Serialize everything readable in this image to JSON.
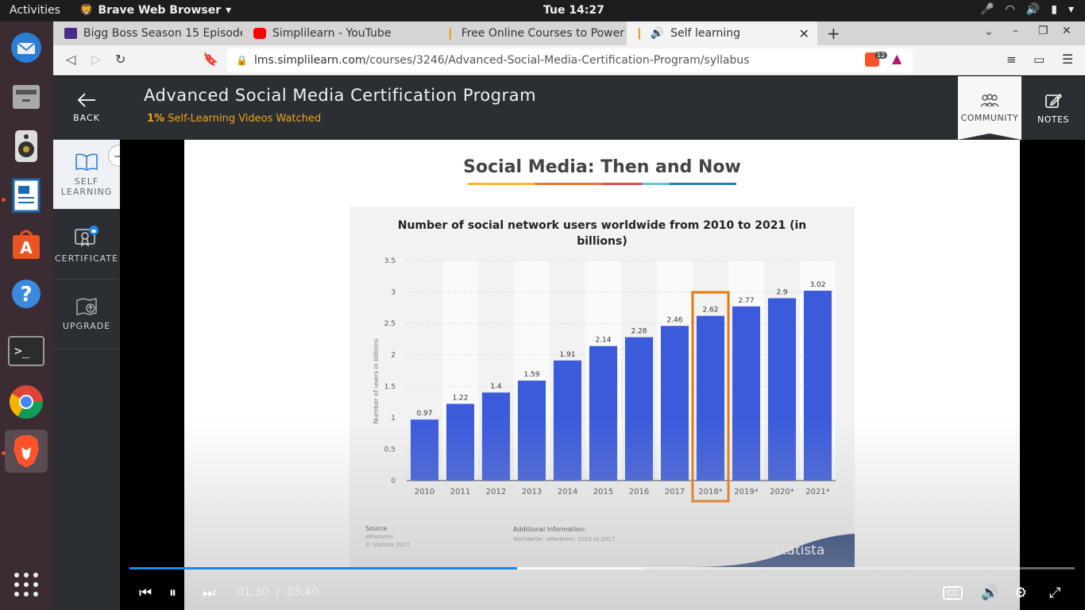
{
  "system": {
    "activities": "Activities",
    "app_name": "Brave Web Browser",
    "clock": "Tue 14:27"
  },
  "tabs": [
    {
      "label": "Bigg Boss Season 15 Episode",
      "favicon_color": "#4b2a8a"
    },
    {
      "label": "Simplilearn - YouTube",
      "favicon_color": "#ff0000"
    },
    {
      "label": "Free Online Courses to Power",
      "favicon_color": "#f0a21a"
    },
    {
      "label": "Self learning",
      "favicon_color": "#f0a21a"
    }
  ],
  "address": {
    "domain": "lms.simplilearn.com",
    "path": "/courses/3246/Advanced-Social-Media-Certification-Program/syllabus",
    "shield_count": "12"
  },
  "header": {
    "title": "Advanced Social Media Certification Program",
    "progress_pct": "1%",
    "progress_text": " Self-Learning Videos Watched",
    "community": "COMMUNITY",
    "notes": "NOTES"
  },
  "nav": {
    "back": "BACK",
    "self_learning_1": "SELF",
    "self_learning_2": "LEARNING",
    "certificate": "CERTIFICATE",
    "upgrade": "UPGRADE"
  },
  "slide": {
    "heading": "Social Media: Then and Now",
    "source_label": "Source",
    "source_1": "eMarketer",
    "source_2": "© Statista 2017",
    "info_label": "Additional Information:",
    "info_text": "Worldwide; eMarketer; 2010 to 2017",
    "brand": "statista"
  },
  "chart_data": {
    "type": "bar",
    "title": "Number of social network users worldwide from 2010 to 2021 (in billions)",
    "ylabel": "Number of users in billions",
    "categories": [
      "2010",
      "2011",
      "2012",
      "2013",
      "2014",
      "2015",
      "2016",
      "2017",
      "2018*",
      "2019*",
      "2020*",
      "2021*"
    ],
    "values": [
      0.97,
      1.22,
      1.4,
      1.59,
      1.91,
      2.14,
      2.28,
      2.46,
      2.62,
      2.77,
      2.9,
      3.02
    ],
    "labels": [
      "0.97",
      "1.22",
      "1.4",
      "1.59",
      "1.91",
      "2.14",
      "2.28",
      "2.46",
      "2.62",
      "2.77",
      "2.9",
      "3.02"
    ],
    "ylim": [
      0,
      3.5
    ],
    "yticks": [
      "0",
      "0.5",
      "1",
      "1.5",
      "2",
      "2.5",
      "3",
      "3.5"
    ],
    "highlight": "2018*",
    "bar_color": "#3b5bdb",
    "highlight_color": "#e8770e",
    "grid": true
  },
  "player": {
    "current": "01:30",
    "separator": "/",
    "duration": "03:40",
    "played_fraction": 0.41,
    "buffered_fraction": 0.545,
    "cc": "CC"
  }
}
